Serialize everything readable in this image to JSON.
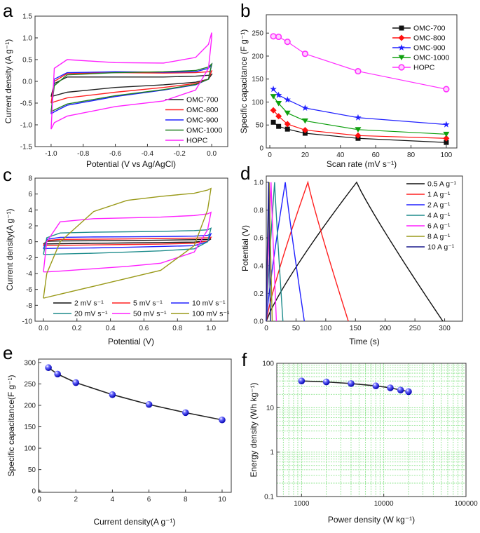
{
  "chart_data": [
    {
      "panel": "a",
      "type": "line",
      "xlabel": "Potential (V vs Ag/AgCl)",
      "ylabel": "Current density (A g⁻¹)",
      "xlim": [
        -1.1,
        0.1
      ],
      "ylim": [
        -1.5,
        1.5
      ],
      "xticks": [
        -1.0,
        -0.8,
        -0.6,
        -0.4,
        -0.2,
        0.0
      ],
      "xtick_labels": [
        "-1.0",
        "-0.8",
        "-0.6",
        "-0.4",
        "-0.2",
        "0.0"
      ],
      "yticks": [
        -1.5,
        -1.0,
        -0.5,
        0.0,
        0.5,
        1.0,
        1.5
      ],
      "ytick_labels": [
        "-1.5",
        "-1.0",
        "-0.5",
        "0.0",
        "0.5",
        "1.0",
        "1.5"
      ],
      "legend": "bottom-right",
      "x": [
        -1.0,
        -0.98,
        -0.9,
        -0.6,
        -0.3,
        -0.1,
        -0.02,
        0.0
      ],
      "series": [
        {
          "name": "OMC-700",
          "color": "#222222",
          "upper": [
            -0.35,
            -0.05,
            0.1,
            0.1,
            0.1,
            0.12,
            0.14,
            0.16
          ],
          "lower": [
            -0.35,
            -0.33,
            -0.25,
            -0.14,
            -0.08,
            -0.02,
            0.05,
            0.16
          ]
        },
        {
          "name": "OMC-800",
          "color": "#ff2020",
          "upper": [
            -0.5,
            0.0,
            0.18,
            0.2,
            0.19,
            0.2,
            0.22,
            0.24
          ],
          "lower": [
            -0.5,
            -0.47,
            -0.38,
            -0.25,
            -0.14,
            -0.05,
            0.05,
            0.24
          ]
        },
        {
          "name": "OMC-900",
          "color": "#2020ff",
          "upper": [
            -0.75,
            0.05,
            0.2,
            0.22,
            0.21,
            0.22,
            0.3,
            0.38
          ],
          "lower": [
            -0.75,
            -0.7,
            -0.55,
            -0.35,
            -0.2,
            -0.08,
            0.05,
            0.38
          ]
        },
        {
          "name": "OMC-1000",
          "color": "#208020",
          "upper": [
            -0.7,
            -0.1,
            0.15,
            0.2,
            0.22,
            0.25,
            0.33,
            0.4
          ],
          "lower": [
            -0.7,
            -0.66,
            -0.52,
            -0.33,
            -0.19,
            -0.07,
            0.05,
            0.4
          ]
        },
        {
          "name": "HOPC",
          "color": "#ff20ff",
          "upper": [
            -1.1,
            0.3,
            0.5,
            0.43,
            0.42,
            0.55,
            0.85,
            1.12
          ],
          "lower": [
            -1.1,
            -0.95,
            -0.8,
            -0.58,
            -0.45,
            -0.2,
            0.3,
            1.0
          ]
        }
      ]
    },
    {
      "panel": "b",
      "type": "line",
      "xlabel": "Scan rate (mV s⁻¹)",
      "ylabel": "Specific capacitance (F g⁻¹)",
      "xlim": [
        -2,
        106
      ],
      "ylim": [
        0,
        290
      ],
      "xticks": [
        0,
        20,
        40,
        60,
        80,
        100
      ],
      "xtick_labels": [
        "0",
        "20",
        "40",
        "60",
        "80",
        "100"
      ],
      "yticks": [
        0,
        50,
        100,
        150,
        200,
        250
      ],
      "ytick_labels": [
        "0",
        "50",
        "100",
        "150",
        "200",
        "250"
      ],
      "legend": "top-right",
      "x": [
        2,
        5,
        10,
        20,
        50,
        100
      ],
      "series": [
        {
          "name": "OMC-700",
          "color": "#111111",
          "marker": "square",
          "values": [
            56,
            47,
            41,
            32,
            21,
            12
          ]
        },
        {
          "name": "OMC-800",
          "color": "#ff1010",
          "marker": "diamond",
          "values": [
            82,
            69,
            52,
            39,
            27,
            21
          ]
        },
        {
          "name": "OMC-900",
          "color": "#2020ff",
          "marker": "star",
          "values": [
            128,
            115,
            105,
            87,
            66,
            51
          ]
        },
        {
          "name": "OMC-1000",
          "color": "#10a010",
          "marker": "triangle-down",
          "values": [
            112,
            97,
            76,
            59,
            40,
            30
          ]
        },
        {
          "name": "HOPC",
          "color": "#ff30ff",
          "marker": "circle",
          "values": [
            243,
            242,
            231,
            205,
            167,
            128
          ]
        }
      ]
    },
    {
      "panel": "c",
      "type": "line",
      "xlabel": "Potential (V)",
      "ylabel": "Current density(A g⁻¹)",
      "xlim": [
        -0.05,
        1.1
      ],
      "ylim": [
        -10,
        8
      ],
      "xticks": [
        0,
        0.2,
        0.4,
        0.6,
        0.8,
        1.0
      ],
      "xtick_labels": [
        "0.0",
        "0.2",
        "0.4",
        "0.6",
        "0.8",
        "1.0"
      ],
      "yticks": [
        -10,
        -8,
        -6,
        -4,
        -2,
        0,
        2,
        4,
        6,
        8
      ],
      "ytick_labels": [
        "-10",
        "-8",
        "-6",
        "-4",
        "-2",
        "0",
        "2",
        "4",
        "6",
        "8"
      ],
      "legend": "bottom",
      "x": [
        0,
        0.02,
        0.1,
        0.3,
        0.5,
        0.7,
        0.9,
        0.98,
        1.0
      ],
      "series": [
        {
          "name": "2 mV s⁻¹",
          "color": "#111111",
          "upper": [
            -0.3,
            0.05,
            0.1,
            0.12,
            0.15,
            0.2,
            0.25,
            0.3,
            0.35
          ],
          "lower": [
            -0.3,
            -0.28,
            -0.25,
            -0.2,
            -0.15,
            -0.1,
            -0.05,
            0.1,
            0.35
          ]
        },
        {
          "name": "5 mV s⁻¹",
          "color": "#ff2020",
          "upper": [
            -0.5,
            0.15,
            0.3,
            0.32,
            0.35,
            0.4,
            0.45,
            0.5,
            0.55
          ],
          "lower": [
            -0.5,
            -0.48,
            -0.45,
            -0.4,
            -0.35,
            -0.3,
            -0.2,
            0.1,
            0.55
          ]
        },
        {
          "name": "10 mV s⁻¹",
          "color": "#2020ff",
          "upper": [
            -0.9,
            0.3,
            0.55,
            0.6,
            0.62,
            0.65,
            0.7,
            0.8,
            1.0
          ],
          "lower": [
            -0.9,
            -0.85,
            -0.82,
            -0.78,
            -0.7,
            -0.6,
            -0.5,
            0.0,
            1.0
          ]
        },
        {
          "name": "20 mV s⁻¹",
          "color": "#1e8c8c",
          "upper": [
            -1.6,
            0.5,
            1.1,
            1.2,
            1.25,
            1.3,
            1.4,
            1.5,
            1.7
          ],
          "lower": [
            -1.6,
            -1.6,
            -1.55,
            -1.45,
            -1.3,
            -1.15,
            -0.9,
            0.0,
            1.7
          ]
        },
        {
          "name": "50 mV s⁻¹",
          "color": "#ff20ff",
          "upper": [
            -3.8,
            0.0,
            2.5,
            2.9,
            3.0,
            3.1,
            3.3,
            3.5,
            3.7
          ],
          "lower": [
            -3.8,
            -3.8,
            -3.7,
            -3.4,
            -3.1,
            -2.7,
            -1.3,
            1.5,
            3.7
          ]
        },
        {
          "name": "100 mV s⁻¹",
          "color": "#9a9a1a",
          "upper": [
            -7.1,
            -4.0,
            0.0,
            3.8,
            5.2,
            5.7,
            6.1,
            6.5,
            6.7
          ],
          "lower": [
            -7.1,
            -7.0,
            -6.6,
            -5.6,
            -4.6,
            -3.6,
            -0.5,
            4.0,
            6.7
          ]
        }
      ]
    },
    {
      "panel": "d",
      "type": "line",
      "xlabel": "Time (s)",
      "ylabel": "Potential (V)",
      "xlim": [
        0,
        330
      ],
      "ylim": [
        0,
        1.045
      ],
      "xticks": [
        0,
        50,
        100,
        150,
        200,
        250,
        300
      ],
      "xtick_labels": [
        "0",
        "50",
        "100",
        "150",
        "200",
        "250",
        "300"
      ],
      "yticks": [
        0,
        0.2,
        0.4,
        0.6,
        0.8,
        1.0
      ],
      "ytick_labels": [
        "0.0",
        "0.2",
        "0.4",
        "0.6",
        "0.8",
        "1.0"
      ],
      "legend": "top-right",
      "series": [
        {
          "name": "0.5 A g⁻¹",
          "color": "#111111",
          "peak_time": 152,
          "end_time": 297
        },
        {
          "name": "1 A g⁻¹",
          "color": "#ff2020",
          "peak_time": 70,
          "end_time": 138
        },
        {
          "name": "2 A g⁻¹",
          "color": "#2020ff",
          "peak_time": 32,
          "end_time": 64
        },
        {
          "name": "4 A g⁻¹",
          "color": "#1e8c8c",
          "peak_time": 14,
          "end_time": 28
        },
        {
          "name": "6 A g⁻¹",
          "color": "#ff20ff",
          "peak_time": 8,
          "end_time": 17
        },
        {
          "name": "8 A g⁻¹",
          "color": "#9a9a1a",
          "peak_time": 5,
          "end_time": 10
        },
        {
          "name": "10 A g⁻¹",
          "color": "#1a1a8c",
          "peak_time": 4,
          "end_time": 7
        }
      ]
    },
    {
      "panel": "e",
      "type": "line",
      "xlabel": "Current density(A g⁻¹)",
      "ylabel": "Specific capacitance(F g⁻¹)",
      "xlim": [
        -0.04,
        10.5
      ],
      "ylim": [
        -3,
        308
      ],
      "xticks": [
        0,
        2,
        4,
        6,
        8,
        10
      ],
      "xtick_labels": [
        "0",
        "2",
        "4",
        "6",
        "8",
        "10"
      ],
      "yticks": [
        0,
        50,
        100,
        150,
        200,
        250,
        300
      ],
      "ytick_labels": [
        "0",
        "50",
        "100",
        "150",
        "200",
        "250",
        "300"
      ],
      "x": [
        0.5,
        1,
        2,
        4,
        6,
        8,
        10
      ],
      "series": [
        {
          "color": "#2020e0",
          "marker": "sphere",
          "values": [
            288,
            273,
            253,
            225,
            202,
            183,
            166
          ]
        }
      ]
    },
    {
      "panel": "f",
      "type": "line",
      "xscale": "log",
      "yscale": "log",
      "grid": true,
      "grid_color": "#7fe07f",
      "xlabel": "Power density (W kg⁻¹)",
      "ylabel": "Energy density (Wh kg⁻¹)",
      "xlim": [
        500,
        100000
      ],
      "ylim": [
        0.1,
        100
      ],
      "xticks": [
        1000,
        10000,
        100000
      ],
      "xtick_labels": [
        "1000",
        "10000",
        "100000"
      ],
      "yticks": [
        0.1,
        1,
        10,
        100
      ],
      "ytick_labels": [
        "0.1",
        "1",
        "10",
        "100"
      ],
      "x": [
        1000,
        2000,
        4000,
        8000,
        12000,
        16000,
        20000
      ],
      "series": [
        {
          "color": "#2020e0",
          "marker": "sphere",
          "values": [
            40,
            38,
            35,
            31,
            28,
            25,
            23
          ]
        }
      ]
    }
  ]
}
